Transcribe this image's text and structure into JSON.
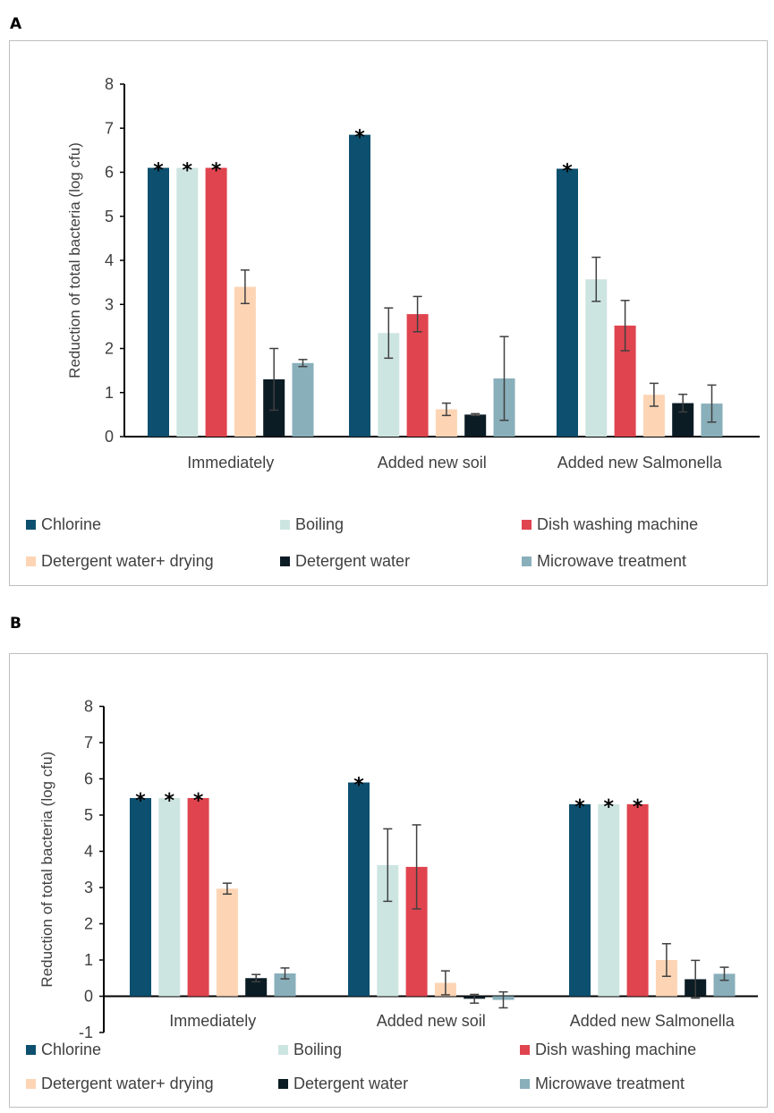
{
  "panels": [
    {
      "letter": "A",
      "legend": [
        "Chlorine",
        "Boiling",
        "Dish washing machine",
        "Detergent water+ drying",
        "Detergent water",
        "Microwave treatment"
      ]
    },
    {
      "letter": "B",
      "legend": [
        "Chlorine",
        "Boiling",
        "Dish washing machine",
        "Detergent water+ drying",
        "Detergent water",
        "Microwave treatment"
      ]
    }
  ],
  "colors": [
    "#0d4f6e",
    "#cde5e1",
    "#e0444f",
    "#fdd5b5",
    "#0b1c24",
    "#89afbb"
  ],
  "chart_data": [
    {
      "type": "bar",
      "panel": "A",
      "ylabel": "Reduction of total bacteria (log cfu)",
      "ylim": [
        0,
        8
      ],
      "yticks": [
        "0",
        "1",
        "2",
        "3",
        "4",
        "5",
        "6",
        "7",
        "8"
      ],
      "categories": [
        "Immediately",
        "Added new soil",
        "Added new Salmonella"
      ],
      "grid": false,
      "legend_position": "bottom",
      "series": [
        {
          "name": "Chlorine",
          "values": [
            6.1,
            6.85,
            6.08
          ],
          "errors": [
            0,
            0,
            0
          ],
          "significant": [
            true,
            true,
            true
          ]
        },
        {
          "name": "Boiling",
          "values": [
            6.1,
            2.35,
            3.57
          ],
          "errors": [
            0,
            0.57,
            0.5
          ],
          "significant": [
            true,
            false,
            false
          ]
        },
        {
          "name": "Dish washing machine",
          "values": [
            6.1,
            2.78,
            2.52
          ],
          "errors": [
            0,
            0.4,
            0.57
          ],
          "significant": [
            true,
            false,
            false
          ]
        },
        {
          "name": "Detergent water+ drying",
          "values": [
            3.4,
            0.62,
            0.95
          ],
          "errors": [
            0.38,
            0.14,
            0.26
          ],
          "significant": [
            false,
            false,
            false
          ]
        },
        {
          "name": "Detergent water",
          "values": [
            1.3,
            0.5,
            0.76
          ],
          "errors": [
            0.7,
            0.02,
            0.2
          ],
          "significant": [
            false,
            false,
            false
          ]
        },
        {
          "name": "Microwave treatment",
          "values": [
            1.67,
            1.32,
            0.75
          ],
          "errors": [
            0.08,
            0.95,
            0.42
          ],
          "significant": [
            false,
            false,
            false
          ]
        }
      ]
    },
    {
      "type": "bar",
      "panel": "B",
      "ylabel": "Reduction of total bacteria (log cfu)",
      "ylim": [
        -1,
        8
      ],
      "yticks": [
        "-1",
        "0",
        "1",
        "2",
        "3",
        "4",
        "5",
        "6",
        "7",
        "8"
      ],
      "categories": [
        "Immediately",
        "Added new soil",
        "Added new Salmonella"
      ],
      "grid": false,
      "legend_position": "bottom",
      "series": [
        {
          "name": "Chlorine",
          "values": [
            5.47,
            5.9,
            5.3
          ],
          "errors": [
            0,
            0,
            0
          ],
          "significant": [
            true,
            true,
            true
          ]
        },
        {
          "name": "Boiling",
          "values": [
            5.47,
            3.62,
            5.3
          ],
          "errors": [
            0,
            1.0,
            0
          ],
          "significant": [
            true,
            false,
            true
          ]
        },
        {
          "name": "Dish washing machine",
          "values": [
            5.47,
            3.57,
            5.3
          ],
          "errors": [
            0,
            1.16,
            0
          ],
          "significant": [
            true,
            false,
            true
          ]
        },
        {
          "name": "Detergent water+ drying",
          "values": [
            2.97,
            0.37,
            1.0
          ],
          "errors": [
            0.15,
            0.33,
            0.45
          ],
          "significant": [
            false,
            false,
            false
          ]
        },
        {
          "name": "Detergent water",
          "values": [
            0.5,
            -0.07,
            0.47
          ],
          "errors": [
            0.1,
            0.12,
            0.52
          ],
          "significant": [
            false,
            false,
            false
          ]
        },
        {
          "name": "Microwave treatment",
          "values": [
            0.63,
            -0.1,
            0.62
          ],
          "errors": [
            0.15,
            0.22,
            0.18
          ],
          "significant": [
            false,
            false,
            false
          ]
        }
      ]
    }
  ]
}
